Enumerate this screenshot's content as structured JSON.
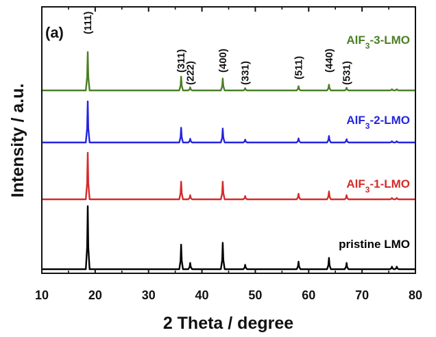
{
  "chart_data": {
    "type": "line",
    "panel_label": "(a)",
    "xlabel": "2 Theta / degree",
    "ylabel": "Intensity / a.u.",
    "xlim": [
      10,
      80
    ],
    "xticks": [
      "10",
      "20",
      "30",
      "40",
      "50",
      "60",
      "70",
      "80"
    ],
    "y_ticks_shown": false,
    "grid": false,
    "legend": "inline labels next to each trace (right side)",
    "peak_positions": [
      18.6,
      36.1,
      37.8,
      43.9,
      48.1,
      58.1,
      63.8,
      67.1,
      75.6,
      76.5
    ],
    "hkl_labels": [
      {
        "text": "(111)",
        "x": 18.6
      },
      {
        "text": "(311)",
        "x": 36.1
      },
      {
        "text": "(222)",
        "x": 37.8
      },
      {
        "text": "(400)",
        "x": 43.9
      },
      {
        "text": "(331)",
        "x": 48.1
      },
      {
        "text": "(511)",
        "x": 58.1
      },
      {
        "text": "(440)",
        "x": 63.8
      },
      {
        "text": "(531)",
        "x": 67.1
      }
    ],
    "series": [
      {
        "name": "pristine LMO",
        "label_main": "pristine LMO",
        "label_sub": "",
        "label_suffix": "",
        "color": "#000000",
        "relative_heights": [
          1.0,
          0.39,
          0.1,
          0.42,
          0.07,
          0.12,
          0.18,
          0.1,
          0.04,
          0.04
        ]
      },
      {
        "name": "AlF3-1-LMO",
        "label_main": "AlF",
        "label_sub": "3",
        "label_suffix": "-1-LMO",
        "color": "#d42a2a",
        "relative_heights": [
          1.0,
          0.38,
          0.09,
          0.38,
          0.07,
          0.12,
          0.17,
          0.09,
          0.03,
          0.03
        ]
      },
      {
        "name": "AlF3-2-LMO",
        "label_main": "AlF",
        "label_sub": "3",
        "label_suffix": "-2-LMO",
        "color": "#2424e0",
        "relative_heights": [
          1.0,
          0.36,
          0.09,
          0.34,
          0.07,
          0.1,
          0.16,
          0.08,
          0.03,
          0.03
        ]
      },
      {
        "name": "AlF3-3-LMO",
        "label_main": "AlF",
        "label_sub": "3",
        "label_suffix": "-3-LMO",
        "color": "#4a7f24",
        "relative_heights": [
          1.0,
          0.36,
          0.08,
          0.31,
          0.06,
          0.11,
          0.15,
          0.07,
          0.03,
          0.03
        ]
      }
    ]
  }
}
